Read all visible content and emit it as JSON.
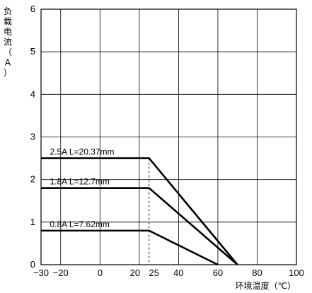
{
  "chart_data": {
    "type": "line",
    "xlabel": "环境温度（℃）",
    "ylabel_chars": [
      "负",
      "载",
      "电",
      "流",
      "（",
      "A",
      "）"
    ],
    "xlim": [
      -30,
      100
    ],
    "ylim": [
      0,
      6
    ],
    "x_ticks": [
      -30,
      -20,
      0,
      20,
      25,
      40,
      60,
      80,
      100
    ],
    "x_tick_labels": [
      "−30",
      "−20",
      "0",
      "20",
      "25",
      "40",
      "60",
      "80",
      "100"
    ],
    "x_gridlines": [
      -20,
      0,
      20,
      40,
      60,
      80
    ],
    "y_ticks": [
      0,
      1,
      2,
      3,
      4,
      5,
      6
    ],
    "y_tick_labels": [
      "0",
      "1",
      "2",
      "3",
      "4",
      "5",
      "6"
    ],
    "grid": true,
    "reference_line": {
      "x": 25,
      "style": "dashed"
    },
    "series": [
      {
        "label": "2.5A L=20.37mm",
        "points": [
          [
            -30,
            2.5
          ],
          [
            25,
            2.5
          ],
          [
            70,
            0
          ]
        ]
      },
      {
        "label": "1.8A L=12.7mm",
        "points": [
          [
            -30,
            1.8
          ],
          [
            25,
            1.8
          ],
          [
            70,
            0
          ]
        ]
      },
      {
        "label": "0.8A L=7.62mm",
        "points": [
          [
            -30,
            0.8
          ],
          [
            25,
            0.8
          ],
          [
            60,
            0
          ]
        ]
      }
    ]
  }
}
